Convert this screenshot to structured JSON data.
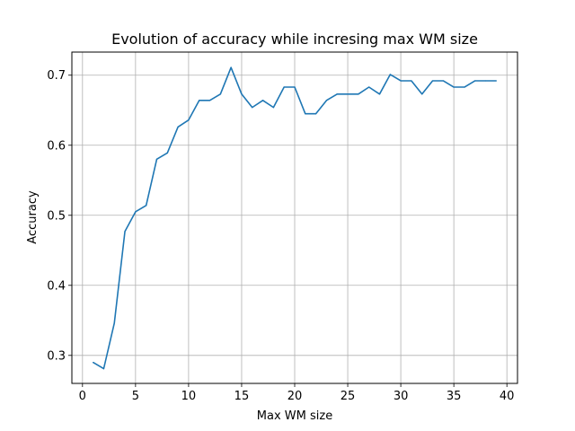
{
  "chart_data": {
    "type": "line",
    "title": "Evolution of accuracy while incresing max WM size",
    "xlabel": "Max WM size",
    "ylabel": "Accuracy",
    "xlim": [
      -1,
      41
    ],
    "ylim": [
      0.26,
      0.733
    ],
    "xticks": [
      0,
      5,
      10,
      15,
      20,
      25,
      30,
      35,
      40
    ],
    "yticks": [
      0.3,
      0.4,
      0.5,
      0.6,
      0.7
    ],
    "xtick_labels": [
      "0",
      "5",
      "10",
      "15",
      "20",
      "25",
      "30",
      "35",
      "40"
    ],
    "ytick_labels": [
      "0.3",
      "0.4",
      "0.5",
      "0.6",
      "0.7"
    ],
    "grid": true,
    "line_color": "#1f77b4",
    "series": [
      {
        "x": [
          1,
          2,
          3,
          4,
          5,
          6,
          7,
          8,
          9,
          10,
          11,
          12,
          13,
          14,
          15,
          16,
          17,
          18,
          19,
          20,
          21,
          22,
          23,
          24,
          25,
          26,
          27,
          28,
          29,
          30,
          31,
          32,
          33,
          34,
          35,
          36,
          37,
          38,
          39
        ],
        "values": [
          0.29,
          0.281,
          0.346,
          0.477,
          0.505,
          0.514,
          0.58,
          0.589,
          0.626,
          0.636,
          0.664,
          0.664,
          0.673,
          0.711,
          0.673,
          0.654,
          0.664,
          0.654,
          0.683,
          0.683,
          0.645,
          0.645,
          0.664,
          0.673,
          0.673,
          0.673,
          0.683,
          0.673,
          0.701,
          0.692,
          0.692,
          0.673,
          0.692,
          0.692,
          0.683,
          0.683,
          0.692,
          0.692,
          0.692
        ]
      }
    ]
  }
}
